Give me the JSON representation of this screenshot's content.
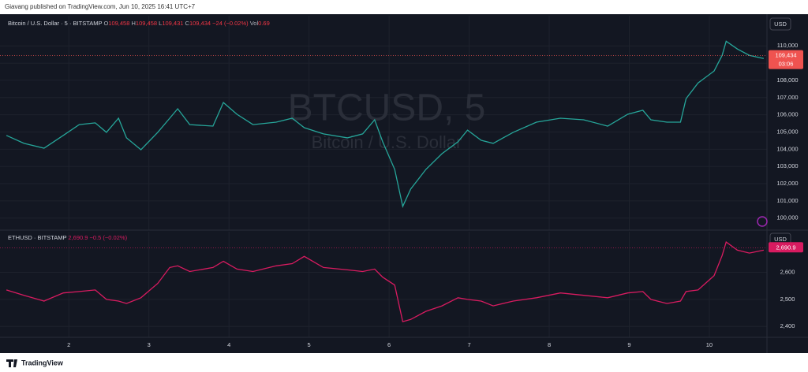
{
  "header": {
    "publisher": "Giavang published on TradingView.com, Jun 10, 2025 16:41 UTC+7"
  },
  "footer": {
    "brand": "TradingView"
  },
  "chart_data": [
    {
      "type": "line",
      "title": "Bitcoin / U.S. Dollar · 5 · BITSTAMP",
      "currency": "USD",
      "watermark": [
        "BTCUSD, 5",
        "Bitcoin / U.S. Dollar"
      ],
      "ohlc": [
        {
          "key": "O",
          "value": 109458,
          "label": "109,458"
        },
        {
          "key": "H",
          "value": 109458,
          "label": "109,458"
        },
        {
          "key": "L",
          "value": 109431,
          "label": "109,431"
        },
        {
          "key": "C",
          "value": 109434,
          "label": "109,434"
        }
      ],
      "change": "−24 (−0.02%)",
      "volume_key": "Vol",
      "volume": "0.69",
      "last_price": {
        "value": 109434,
        "label": "109,434"
      },
      "countdown": "03:06",
      "x": [
        1.22,
        1.44,
        1.69,
        1.93,
        2.13,
        2.33,
        2.47,
        2.62,
        2.72,
        2.9,
        3.11,
        3.26,
        3.36,
        3.51,
        3.8,
        3.93,
        4.1,
        4.3,
        4.59,
        4.79,
        4.94,
        5.18,
        5.48,
        5.67,
        5.82,
        5.92,
        6.07,
        6.17,
        6.27,
        6.46,
        6.66,
        6.86,
        6.98,
        7.15,
        7.3,
        7.55,
        7.84,
        8.14,
        8.43,
        8.73,
        8.98,
        9.17,
        9.27,
        9.47,
        9.64,
        9.71,
        9.86,
        10.06,
        10.16,
        10.21,
        10.35,
        10.5,
        10.68
      ],
      "series": [
        {
          "color": "#26a69a",
          "down_color": "#ef5350",
          "values": [
            104800,
            104340,
            104060,
            104800,
            105430,
            105530,
            104980,
            105800,
            104660,
            103970,
            104980,
            105800,
            106350,
            105430,
            105340,
            106710,
            106030,
            105430,
            105570,
            105800,
            105250,
            104890,
            104660,
            104890,
            105710,
            104430,
            102830,
            100680,
            101690,
            102830,
            103740,
            104430,
            105110,
            104520,
            104340,
            104980,
            105570,
            105800,
            105710,
            105340,
            106030,
            106260,
            105710,
            105570,
            105570,
            106940,
            107850,
            108540,
            109450,
            110270,
            109820,
            109450,
            109270
          ]
        }
      ],
      "xlim": [
        1.14,
        10.72
      ],
      "ylim": [
        99300,
        111750
      ],
      "yticks": [
        {
          "value": 100000,
          "label": "100,000"
        },
        {
          "value": 101000,
          "label": "101,000"
        },
        {
          "value": 102000,
          "label": "102,000"
        },
        {
          "value": 103000,
          "label": "103,000"
        },
        {
          "value": 104000,
          "label": "104,000"
        },
        {
          "value": 105000,
          "label": "105,000"
        },
        {
          "value": 106000,
          "label": "106,000"
        },
        {
          "value": 107000,
          "label": "107,000"
        },
        {
          "value": 108000,
          "label": "108,000"
        },
        {
          "value": 109000,
          "label": "109,000"
        },
        {
          "value": 110000,
          "label": "110,000"
        }
      ],
      "grid": true
    },
    {
      "type": "line",
      "title": "ETHUSD · BITSTAMP",
      "currency": "USD",
      "last_price": {
        "value": 2690.9,
        "label": "2,690.9"
      },
      "change": "−0.5 (−0.02%)",
      "x": [
        1.22,
        1.44,
        1.69,
        1.93,
        2.13,
        2.33,
        2.47,
        2.62,
        2.72,
        2.9,
        3.11,
        3.26,
        3.36,
        3.51,
        3.8,
        3.93,
        4.1,
        4.3,
        4.59,
        4.79,
        4.94,
        5.18,
        5.48,
        5.67,
        5.82,
        5.92,
        6.07,
        6.17,
        6.27,
        6.46,
        6.66,
        6.86,
        6.98,
        7.15,
        7.3,
        7.55,
        7.84,
        8.14,
        8.43,
        8.73,
        8.98,
        9.17,
        9.27,
        9.47,
        9.64,
        9.71,
        9.86,
        10.06,
        10.16,
        10.21,
        10.35,
        10.5,
        10.68
      ],
      "series": [
        {
          "color": "#d81b60",
          "values": [
            2535,
            2515,
            2494,
            2524,
            2529,
            2535,
            2500,
            2494,
            2485,
            2506,
            2559,
            2618,
            2624,
            2603,
            2618,
            2641,
            2612,
            2603,
            2624,
            2632,
            2659,
            2618,
            2609,
            2603,
            2612,
            2582,
            2553,
            2418,
            2426,
            2456,
            2476,
            2506,
            2500,
            2494,
            2476,
            2494,
            2506,
            2524,
            2515,
            2506,
            2524,
            2529,
            2500,
            2485,
            2494,
            2529,
            2535,
            2588,
            2662,
            2712,
            2682,
            2671,
            2682
          ]
        }
      ],
      "xlim": [
        1.14,
        10.72
      ],
      "ylim": [
        2360,
        2750
      ],
      "xticks": [
        2,
        3,
        4,
        5,
        6,
        7,
        8,
        9,
        10
      ],
      "yticks": [
        {
          "value": 2400,
          "label": "2,400"
        },
        {
          "value": 2500,
          "label": "2,500"
        },
        {
          "value": 2600,
          "label": "2,600"
        }
      ],
      "grid": true
    }
  ]
}
